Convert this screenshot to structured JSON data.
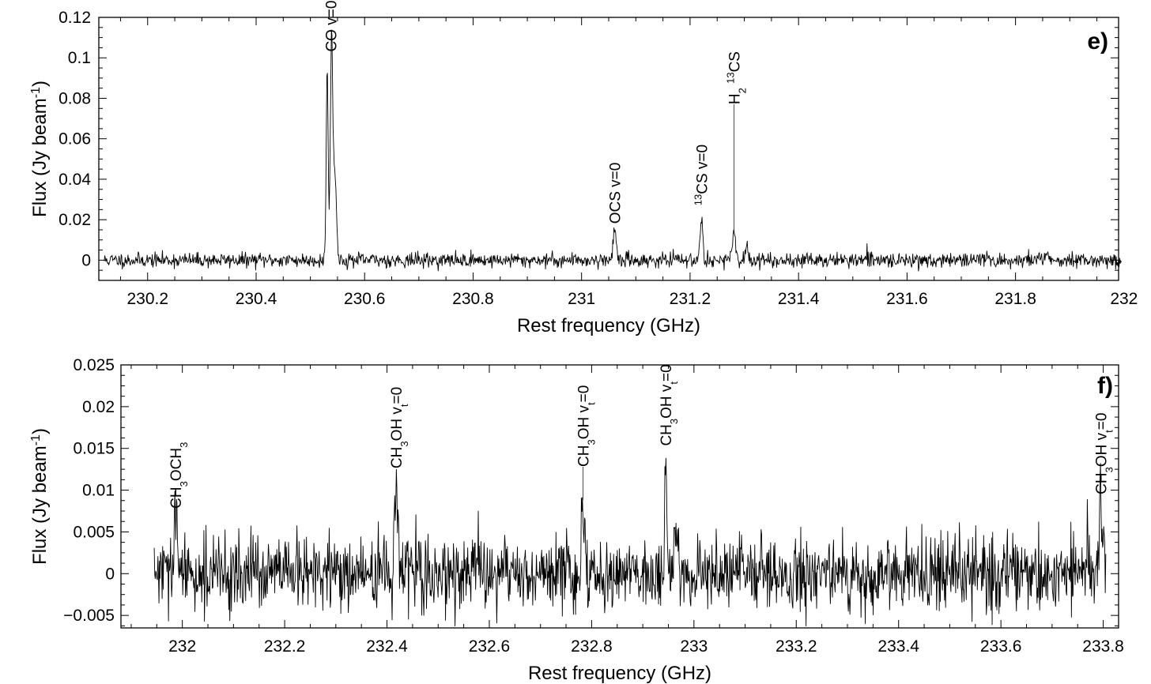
{
  "chart_data": [
    {
      "type": "line",
      "panel_label": "e)",
      "xlabel": "Rest frequency (GHz)",
      "ylabel": "Flux (Jy beam-1)",
      "ylabel_parts": {
        "main": "Flux (Jy beam",
        "sup": "-1",
        "close": ")"
      },
      "xlim": [
        230.11,
        231.99
      ],
      "ylim": [
        -0.01,
        0.12
      ],
      "xticks": [
        230.2,
        230.4,
        230.6,
        230.8,
        231,
        231.2,
        231.4,
        231.6,
        231.8,
        232
      ],
      "xtick_labels": [
        "230.2",
        "230.4",
        "230.6",
        "230.8",
        "231",
        "231.2",
        "231.4",
        "231.6",
        "231.8",
        "232"
      ],
      "yticks": [
        0,
        0.02,
        0.04,
        0.06,
        0.08,
        0.1,
        0.12
      ],
      "ytick_labels": [
        "0",
        "0.02",
        "0.04",
        "0.06",
        "0.08",
        "0.1",
        "0.12"
      ],
      "noise_sigma": 0.0018,
      "x_range": [
        230.12,
        231.995
      ],
      "peaks": [
        {
          "x": 230.531,
          "amp": 0.094,
          "width": 0.0018
        },
        {
          "x": 230.539,
          "amp": 0.107,
          "width": 0.0022
        },
        {
          "x": 230.545,
          "amp": 0.042,
          "width": 0.003
        },
        {
          "x": 231.061,
          "amp": 0.015,
          "width": 0.003
        },
        {
          "x": 231.221,
          "amp": 0.022,
          "width": 0.0025
        },
        {
          "x": 231.281,
          "amp": 0.012,
          "width": 0.003
        },
        {
          "x": 231.305,
          "amp": 0.004,
          "width": 0.004
        },
        {
          "x": 231.858,
          "amp": 0.005,
          "width": 0.003
        }
      ],
      "annotations": [
        {
          "x": 230.538,
          "text": "CO v=0",
          "parts": [
            [
              "CO v=0",
              ""
            ]
          ],
          "label_y": 0.103,
          "line_to": null
        },
        {
          "x": 231.061,
          "text": "OCS v=0",
          "parts": [
            [
              "OCS v=0",
              ""
            ]
          ],
          "label_y": 0.018,
          "line_to": null
        },
        {
          "x": 231.221,
          "text": "13CS v=0",
          "parts": [
            [
              "13",
              "sup"
            ],
            [
              "CS v=0",
              ""
            ]
          ],
          "label_y": 0.027,
          "line_to": null
        },
        {
          "x": 231.281,
          "text": "H2 13CS",
          "parts": [
            [
              "H",
              ""
            ],
            [
              "2",
              "sub"
            ],
            [
              " ",
              ""
            ],
            [
              "13",
              "sup"
            ],
            [
              "CS",
              ""
            ]
          ],
          "label_y": 0.077,
          "line_to": 0.014
        }
      ]
    },
    {
      "type": "line",
      "panel_label": "f)",
      "xlabel": "Rest frequency (GHz)",
      "ylabel": "Flux (Jy beam-1)",
      "ylabel_parts": {
        "main": "Flux (Jy beam",
        "sup": "-1",
        "close": ")"
      },
      "xlim": [
        231.88,
        233.83
      ],
      "ylim": [
        -0.0065,
        0.025
      ],
      "xticks": [
        232,
        232.2,
        232.4,
        232.6,
        232.8,
        233,
        233.2,
        233.4,
        233.6,
        233.8
      ],
      "xtick_labels": [
        "232",
        "232.2",
        "232.4",
        "232.6",
        "232.8",
        "233",
        "233.2",
        "233.4",
        "233.6",
        "233.8"
      ],
      "yticks": [
        -0.005,
        0,
        0.005,
        0.01,
        0.015,
        0.02,
        0.025
      ],
      "ytick_labels": [
        "−0.005",
        "0",
        "0.005",
        "0.01",
        "0.015",
        "0.02",
        "0.025"
      ],
      "noise_sigma": 0.0022,
      "x_range": [
        231.945,
        233.805
      ],
      "peaks": [
        {
          "x": 231.987,
          "amp": 0.0068,
          "width": 0.003
        },
        {
          "x": 232.418,
          "amp": 0.011,
          "width": 0.003
        },
        {
          "x": 232.783,
          "amp": 0.0075,
          "width": 0.003
        },
        {
          "x": 232.945,
          "amp": 0.014,
          "width": 0.002
        },
        {
          "x": 232.965,
          "amp": 0.0055,
          "width": 0.004
        },
        {
          "x": 233.795,
          "amp": 0.0085,
          "width": 0.003
        }
      ],
      "annotations": [
        {
          "x": 231.987,
          "text": "CH3OCH3",
          "parts": [
            [
              "CH",
              ""
            ],
            [
              "3",
              "sub"
            ],
            [
              "OCH",
              ""
            ],
            [
              "3",
              "sub"
            ]
          ],
          "label_y": 0.0078,
          "line_to": null
        },
        {
          "x": 232.418,
          "text": "CH3OH vt=0",
          "parts": [
            [
              "CH",
              ""
            ],
            [
              "3",
              "sub"
            ],
            [
              "OH v",
              ""
            ],
            [
              "t",
              "sub"
            ],
            [
              "=0",
              ""
            ]
          ],
          "label_y": 0.0126,
          "line_to": null
        },
        {
          "x": 232.783,
          "text": "CH3OH vt=0",
          "parts": [
            [
              "CH",
              ""
            ],
            [
              "3",
              "sub"
            ],
            [
              "OH v",
              ""
            ],
            [
              "t",
              "sub"
            ],
            [
              "=0",
              ""
            ]
          ],
          "label_y": 0.0128,
          "line_to": 0.0088
        },
        {
          "x": 232.945,
          "text": "CH3OH vt=0",
          "parts": [
            [
              "CH",
              ""
            ],
            [
              "3",
              "sub"
            ],
            [
              "OH v",
              ""
            ],
            [
              "t",
              "sub"
            ],
            [
              "=0",
              ""
            ]
          ],
          "label_y": 0.0153,
          "line_to": null
        },
        {
          "x": 233.795,
          "text": "CH3OH vt=0",
          "parts": [
            [
              "CH",
              ""
            ],
            [
              "3",
              "sub"
            ],
            [
              "OH v",
              ""
            ],
            [
              "t",
              "sub"
            ],
            [
              "=0",
              ""
            ]
          ],
          "label_y": 0.0095,
          "line_to": null
        }
      ]
    }
  ]
}
